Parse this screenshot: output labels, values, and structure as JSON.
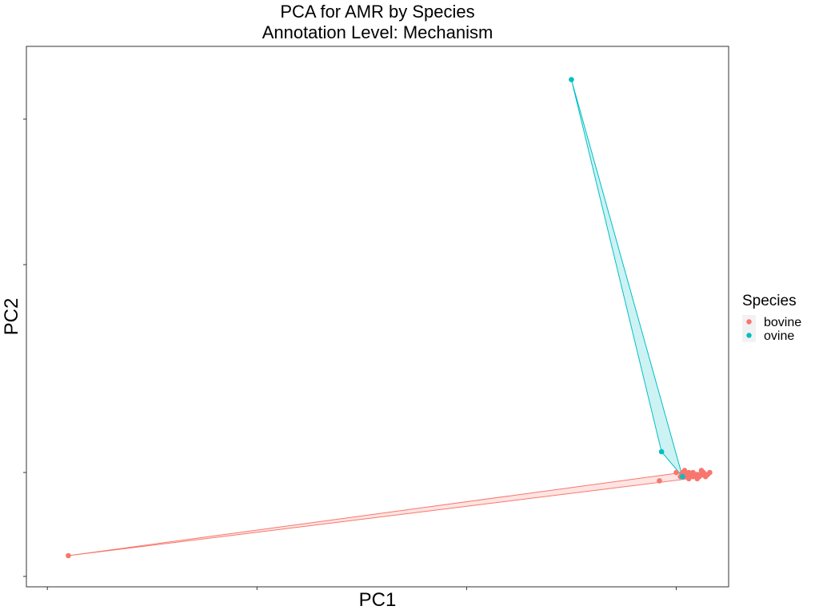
{
  "chart_data": {
    "type": "scatter",
    "title": "PCA for AMR by Species",
    "subtitle": "Annotation Level: Mechanism",
    "xlabel": "PC1",
    "ylabel": "PC2",
    "xlim": [
      -2.5,
      0.85
    ],
    "ylim": [
      -0.55,
      2.05
    ],
    "x_ticks": [
      -2.4,
      -1.4,
      -0.4,
      0.6
    ],
    "y_ticks": [
      -0.5,
      0.0,
      1.0,
      1.7
    ],
    "grid": false,
    "legend": {
      "title": "Species",
      "position": "right"
    },
    "series": [
      {
        "name": "bovine",
        "color": "#F8766D",
        "fill": "#F8766D",
        "points": [
          [
            -2.3,
            -0.4
          ],
          [
            0.52,
            -0.04
          ],
          [
            0.6,
            0.0
          ],
          [
            0.63,
            0.0
          ],
          [
            0.64,
            -0.02
          ],
          [
            0.65,
            -0.01
          ],
          [
            0.66,
            -0.03
          ],
          [
            0.67,
            -0.01
          ],
          [
            0.68,
            -0.02
          ],
          [
            0.69,
            -0.01
          ],
          [
            0.7,
            -0.03
          ],
          [
            0.71,
            -0.02
          ],
          [
            0.72,
            -0.01
          ],
          [
            0.73,
            0.0
          ],
          [
            0.74,
            -0.02
          ],
          [
            0.75,
            -0.01
          ],
          [
            0.76,
            0.0
          ],
          [
            0.62,
            -0.02
          ],
          [
            0.64,
            0.01
          ],
          [
            0.66,
            0.0
          ],
          [
            0.68,
            0.0
          ],
          [
            0.7,
            -0.01
          ],
          [
            0.72,
            0.01
          ]
        ],
        "hull": [
          [
            -2.3,
            -0.4
          ],
          [
            0.63,
            0.0
          ],
          [
            0.76,
            0.0
          ],
          [
            0.74,
            -0.02
          ]
        ]
      },
      {
        "name": "ovine",
        "color": "#00BFC4",
        "fill": "#00BFC4",
        "points": [
          [
            0.1,
            1.89
          ],
          [
            0.53,
            0.1
          ],
          [
            0.63,
            -0.02
          ]
        ],
        "hull": [
          [
            0.1,
            1.89
          ],
          [
            0.63,
            -0.02
          ],
          [
            0.53,
            0.1
          ]
        ]
      }
    ]
  }
}
